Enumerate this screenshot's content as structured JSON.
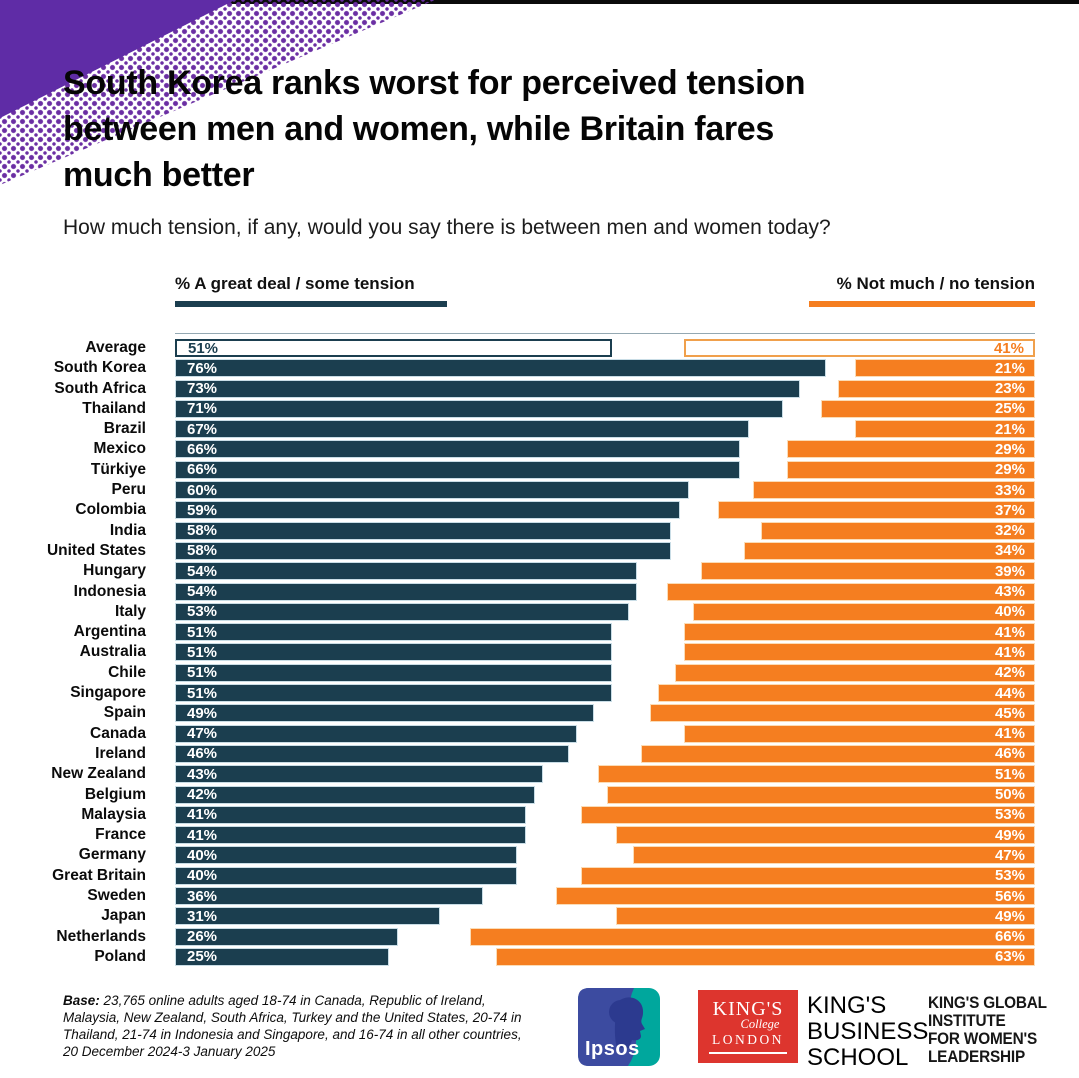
{
  "header": {
    "title_lines": [
      "South Korea ranks worst for perceived tension",
      "between men and women, while Britain fares",
      "much better"
    ],
    "subtitle": "How much tension, if any, would you say there is between men and women today?"
  },
  "legend": {
    "left": {
      "label": "% A great deal / some tension",
      "color": "#1b3e4f"
    },
    "right": {
      "label": "% Not much / no tension",
      "color": "#f57e20"
    }
  },
  "chart_data": {
    "type": "bar",
    "orientation": "diverging-horizontal",
    "unit": "%",
    "xmax": 100,
    "average_row_style": "outlined",
    "categories": [
      "Average",
      "South Korea",
      "South Africa",
      "Thailand",
      "Brazil",
      "Mexico",
      "Türkiye",
      "Peru",
      "Colombia",
      "India",
      "United States",
      "Hungary",
      "Indonesia",
      "Italy",
      "Argentina",
      "Australia",
      "Chile",
      "Singapore",
      "Spain",
      "Canada",
      "Ireland",
      "New Zealand",
      "Belgium",
      "Malaysia",
      "France",
      "Germany",
      "Great Britain",
      "Sweden",
      "Japan",
      "Netherlands",
      "Poland"
    ],
    "series": [
      {
        "name": "% A great deal / some tension",
        "color": "#1b3e4f",
        "values": [
          51,
          76,
          73,
          71,
          67,
          66,
          66,
          60,
          59,
          58,
          58,
          54,
          54,
          53,
          51,
          51,
          51,
          51,
          49,
          47,
          46,
          43,
          42,
          41,
          41,
          40,
          40,
          36,
          31,
          26,
          25
        ]
      },
      {
        "name": "% Not much / no tension",
        "color": "#f57e20",
        "values": [
          41,
          21,
          23,
          25,
          21,
          29,
          29,
          33,
          37,
          32,
          34,
          39,
          43,
          40,
          41,
          41,
          42,
          44,
          45,
          41,
          46,
          51,
          50,
          53,
          49,
          47,
          53,
          56,
          49,
          66,
          63
        ]
      }
    ],
    "title": "South Korea ranks worst for perceived tension between men and women, while Britain fares much better",
    "xlabel": "",
    "ylabel": ""
  },
  "footer": {
    "base_label": "Base:",
    "base_lines": [
      "23,765 online adults aged 18-74 in Canada, Republic of Ireland,",
      "Malaysia, New Zealand, South Africa, Turkey and the United States, 20-74 in",
      "Thailand, 21-74 in Indonesia and Singapore, and 16-74 in all other countries,",
      "20 December 2024-3 January 2025"
    ]
  },
  "logos": {
    "ipsos": {
      "text": "Ipsos",
      "blue": "#3c4ba0",
      "teal": "#00a79d"
    },
    "kcl": {
      "line1": "KING'S",
      "line2": "College",
      "line3": "LONDON",
      "red": "#dd352e"
    },
    "kbs_lines": [
      "KING'S",
      "BUSINESS",
      "SCHOOL"
    ],
    "kgi_lines": [
      "KING'S GLOBAL",
      "INSTITUTE",
      "FOR WOMEN'S",
      "LEADERSHIP"
    ]
  },
  "colors": {
    "tension_teal": "#1b3e4f",
    "no_tension_orange": "#f57e20",
    "corner_purple": "#5f2ca6",
    "top_bar_black": "#0a0a0a"
  }
}
